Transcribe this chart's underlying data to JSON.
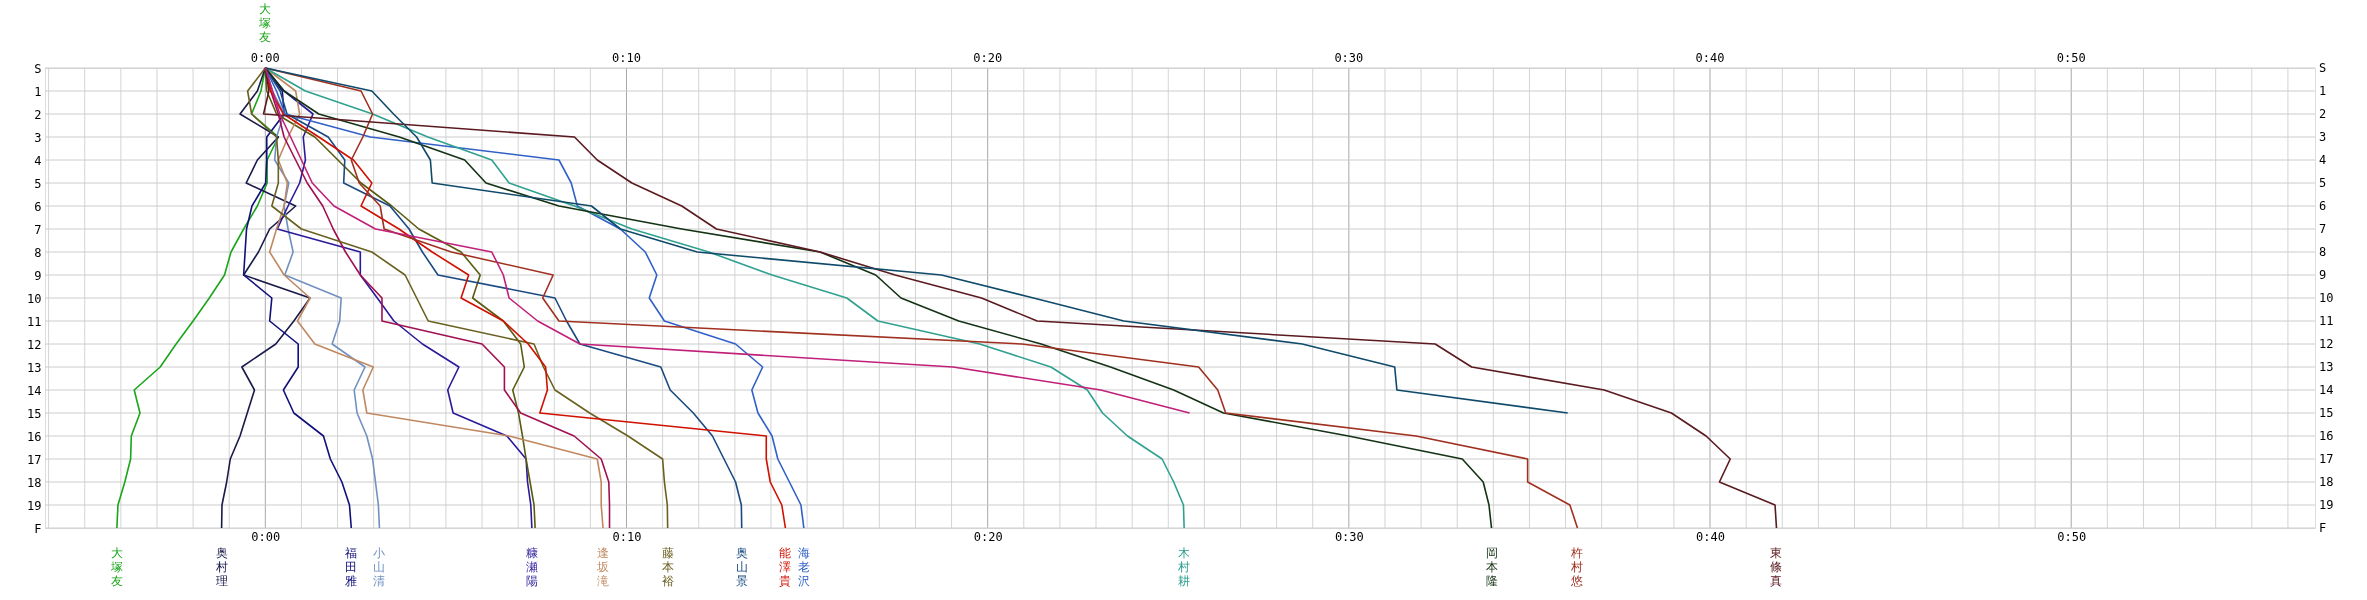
{
  "chart_data": {
    "type": "line",
    "orientation": "horizontal",
    "grid": true,
    "legend": false,
    "annotations": [
      "大塚友"
    ],
    "categories": [
      "S",
      "1",
      "2",
      "3",
      "4",
      "5",
      "6",
      "7",
      "8",
      "9",
      "10",
      "11",
      "12",
      "13",
      "14",
      "15",
      "16",
      "17",
      "18",
      "19",
      "F"
    ],
    "xlim": [
      -6.1,
      56.75
    ],
    "x2lim": [
      -6.1,
      56.75
    ],
    "xticks": [
      {
        "value": -6,
        "label": null
      },
      {
        "value": -5,
        "label": null
      },
      {
        "value": -4,
        "label": null
      },
      {
        "value": -3,
        "label": null
      },
      {
        "value": -2,
        "label": null
      },
      {
        "value": -1,
        "label": null
      },
      {
        "value": 0,
        "label": "0:00"
      },
      {
        "value": 1,
        "label": null
      },
      {
        "value": 2,
        "label": null
      },
      {
        "value": 3,
        "label": null
      },
      {
        "value": 4,
        "label": null
      },
      {
        "value": 5,
        "label": null
      },
      {
        "value": 6,
        "label": null
      },
      {
        "value": 7,
        "label": null
      },
      {
        "value": 8,
        "label": null
      },
      {
        "value": 9,
        "label": null
      },
      {
        "value": 10,
        "label": "0:10"
      },
      {
        "value": 11,
        "label": null
      },
      {
        "value": 12,
        "label": null
      },
      {
        "value": 13,
        "label": null
      },
      {
        "value": 14,
        "label": null
      },
      {
        "value": 15,
        "label": null
      },
      {
        "value": 16,
        "label": null
      },
      {
        "value": 17,
        "label": null
      },
      {
        "value": 18,
        "label": null
      },
      {
        "value": 19,
        "label": null
      },
      {
        "value": 20,
        "label": "0:20"
      },
      {
        "value": 21,
        "label": null
      },
      {
        "value": 22,
        "label": null
      },
      {
        "value": 23,
        "label": null
      },
      {
        "value": 24,
        "label": null
      },
      {
        "value": 25,
        "label": null
      },
      {
        "value": 26,
        "label": null
      },
      {
        "value": 27,
        "label": null
      },
      {
        "value": 28,
        "label": null
      },
      {
        "value": 29,
        "label": null
      },
      {
        "value": 30,
        "label": "0:30"
      },
      {
        "value": 31,
        "label": null
      },
      {
        "value": 32,
        "label": null
      },
      {
        "value": 33,
        "label": null
      },
      {
        "value": 34,
        "label": null
      },
      {
        "value": 35,
        "label": null
      },
      {
        "value": 36,
        "label": null
      },
      {
        "value": 37,
        "label": null
      },
      {
        "value": 38,
        "label": null
      },
      {
        "value": 39,
        "label": null
      },
      {
        "value": 40,
        "label": "0:40"
      },
      {
        "value": 41,
        "label": null
      },
      {
        "value": 42,
        "label": null
      },
      {
        "value": 43,
        "label": null
      },
      {
        "value": 44,
        "label": null
      },
      {
        "value": 45,
        "label": null
      },
      {
        "value": 46,
        "label": null
      },
      {
        "value": 47,
        "label": null
      },
      {
        "value": 48,
        "label": null
      },
      {
        "value": 49,
        "label": null
      },
      {
        "value": 50,
        "label": "0:50"
      },
      {
        "value": 51,
        "label": null
      },
      {
        "value": 52,
        "label": null
      },
      {
        "value": 53,
        "label": null
      },
      {
        "value": 54,
        "label": null
      },
      {
        "value": 55,
        "label": null
      },
      {
        "value": 56,
        "label": null
      }
    ],
    "x2ticks": [
      {
        "value": 0,
        "label": "0:00"
      },
      {
        "value": 10,
        "label": "0:10"
      },
      {
        "value": 20,
        "label": "0:20"
      },
      {
        "value": 30,
        "label": "0:30"
      },
      {
        "value": 40,
        "label": "0:40"
      },
      {
        "value": 50,
        "label": "0:50"
      }
    ],
    "series": [
      {
        "name": "大塚友",
        "color": "#1aa51a",
        "values": [
          0,
          -0.12,
          -0.38,
          0.36,
          0.05,
          0.05,
          -0.22,
          -0.6,
          -0.95,
          -1.13,
          -1.55,
          -2.0,
          -2.47,
          -2.91,
          -3.63,
          -3.47,
          -3.71,
          -3.73,
          -3.89,
          -4.08,
          -4.11
        ]
      },
      {
        "name": "奥村理",
        "color": "#1a1a4a",
        "values": [
          0,
          -0.22,
          -0.7,
          0.36,
          -0.22,
          -0.53,
          0.84,
          0.12,
          -0.19,
          -0.6,
          1.24,
          0.79,
          0.29,
          -0.65,
          -0.3,
          -0.5,
          -0.7,
          -0.97,
          -1.07,
          -1.2,
          -1.21
        ]
      },
      {
        "name": "福田雅",
        "color": "#10107a",
        "values": [
          0,
          0.47,
          0.52,
          0.04,
          0.04,
          0.01,
          -0.37,
          -0.52,
          -0.56,
          -0.6,
          0.18,
          0.12,
          0.91,
          0.91,
          0.5,
          0.79,
          1.61,
          1.8,
          2.12,
          2.33,
          2.38
        ]
      },
      {
        "name": "小山清",
        "color": "#7090c0",
        "values": [
          0,
          0.2,
          0.52,
          0.31,
          0.26,
          0.65,
          0.52,
          0.63,
          0.77,
          0.54,
          2.1,
          2.06,
          1.85,
          2.76,
          2.46,
          2.54,
          2.81,
          2.97,
          3.05,
          3.13,
          3.16
        ]
      },
      {
        "name": "糠瀬陽",
        "color": "#2a1a9a",
        "values": [
          0,
          0.52,
          1.32,
          1.05,
          1.11,
          0.95,
          0.63,
          0.33,
          2.63,
          2.63,
          3.1,
          3.56,
          4.35,
          5.36,
          5.05,
          5.2,
          6.69,
          7.22,
          7.26,
          7.35,
          7.38
        ]
      },
      {
        "color": "#5a5a10",
        "values": [
          0,
          0.04,
          0.31,
          1.37,
          2.01,
          2.65,
          3.5,
          4.25,
          5.42,
          5.95,
          5.74,
          6.59,
          7.07,
          7.17,
          6.85,
          7.01,
          7.12,
          7.22,
          7.33,
          7.44,
          7.47
        ]
      },
      {
        "name": "逢坂滝",
        "color": "#c08860",
        "values": [
          0,
          0.84,
          0.95,
          0.63,
          0.36,
          0.61,
          0.52,
          0.31,
          0.12,
          0.52,
          1.24,
          0.89,
          1.37,
          2.99,
          2.7,
          2.81,
          6.75,
          9.19,
          9.3,
          9.3,
          9.35
        ]
      },
      {
        "color": "#a01050",
        "values": [
          0,
          0.15,
          0.36,
          0.52,
          0.84,
          1.16,
          1.59,
          1.88,
          2.22,
          2.63,
          3.23,
          3.23,
          6.0,
          6.62,
          6.62,
          7.07,
          8.55,
          9.3,
          9.51,
          9.53,
          9.53
        ]
      },
      {
        "name": "藤本裕",
        "color": "#6a6020",
        "values": [
          0,
          -0.49,
          -0.38,
          0.31,
          0.36,
          0.36,
          0.18,
          1.0,
          2.95,
          3.87,
          4.19,
          4.51,
          7.44,
          7.7,
          8.02,
          8.98,
          10.04,
          11.0,
          11.05,
          11.13,
          11.14
        ]
      },
      {
        "name": "奥山景",
        "color": "#1a4a80",
        "values": [
          0,
          0.41,
          0.6,
          1.74,
          2.2,
          2.17,
          3.45,
          3.98,
          4.35,
          4.78,
          8.02,
          8.34,
          8.71,
          10.95,
          11.21,
          11.85,
          12.38,
          12.7,
          13.02,
          13.18,
          13.19
        ]
      },
      {
        "name": "能澤貴",
        "color": "#d01000",
        "values": [
          0,
          0.15,
          0.5,
          1.48,
          2.44,
          2.95,
          2.65,
          3.7,
          4.62,
          5.63,
          5.42,
          6.59,
          7.28,
          7.76,
          7.81,
          7.6,
          13.87,
          13.87,
          13.98,
          14.3,
          14.4
        ]
      },
      {
        "name": "海老沢",
        "color": "#3060c8",
        "values": [
          0,
          0.31,
          0.55,
          2.91,
          8.13,
          8.47,
          8.64,
          9.83,
          10.52,
          10.84,
          10.63,
          11.05,
          13.02,
          13.77,
          13.47,
          13.64,
          14.03,
          14.19,
          14.51,
          14.83,
          14.91
        ]
      },
      {
        "name": "木村耕",
        "color": "#30a090",
        "values": [
          0,
          1.11,
          2.97,
          4.5,
          6.27,
          6.75,
          8.56,
          10.15,
          12.28,
          14.03,
          16.1,
          16.96,
          19.78,
          21.75,
          22.76,
          23.18,
          23.87,
          24.83,
          25.15,
          25.42,
          25.44
        ]
      },
      {
        "name": "岡本隆",
        "color": "#143214",
        "values": [
          0,
          0.52,
          1.48,
          3.71,
          5.52,
          6.11,
          8.13,
          11.53,
          15.36,
          16.9,
          17.6,
          19.2,
          21.48,
          23.4,
          25.15,
          26.53,
          29.99,
          33.14,
          33.72,
          33.88,
          33.95
        ]
      },
      {
        "name": "杵村悠",
        "color": "#a03020",
        "values": [
          0,
          2.65,
          2.97,
          2.7,
          2.38,
          2.6,
          3.18,
          3.29,
          5.15,
          7.97,
          7.68,
          8.13,
          20.95,
          25.84,
          26.37,
          26.59,
          31.86,
          34.95,
          34.95,
          36.12,
          36.33
        ]
      },
      {
        "name": "東條真",
        "color": "#5a1a20",
        "values": [
          0,
          0.1,
          -0.05,
          8.56,
          9.19,
          10.15,
          11.53,
          12.49,
          15.36,
          17.44,
          19.83,
          21.37,
          32.39,
          33.4,
          37.07,
          38.93,
          39.89,
          40.56,
          40.26,
          41.8,
          41.84
        ]
      },
      {
        "color": "#104a6a",
        "values": [
          0,
          2.95,
          3.55,
          4.19,
          4.57,
          4.62,
          9.03,
          9.83,
          11.96,
          18.72,
          21.27,
          23.77,
          28.71,
          31.27,
          31.33,
          36.06,
          null,
          null,
          null,
          null,
          null
        ]
      },
      {
        "color": "#c0207a",
        "values": [
          0,
          0.2,
          0.4,
          0.7,
          1.0,
          1.3,
          1.9,
          3.05,
          6.27,
          6.59,
          6.75,
          7.54,
          8.71,
          19.04,
          23.13,
          25.59,
          null,
          null,
          null,
          null,
          null
        ]
      }
    ]
  }
}
